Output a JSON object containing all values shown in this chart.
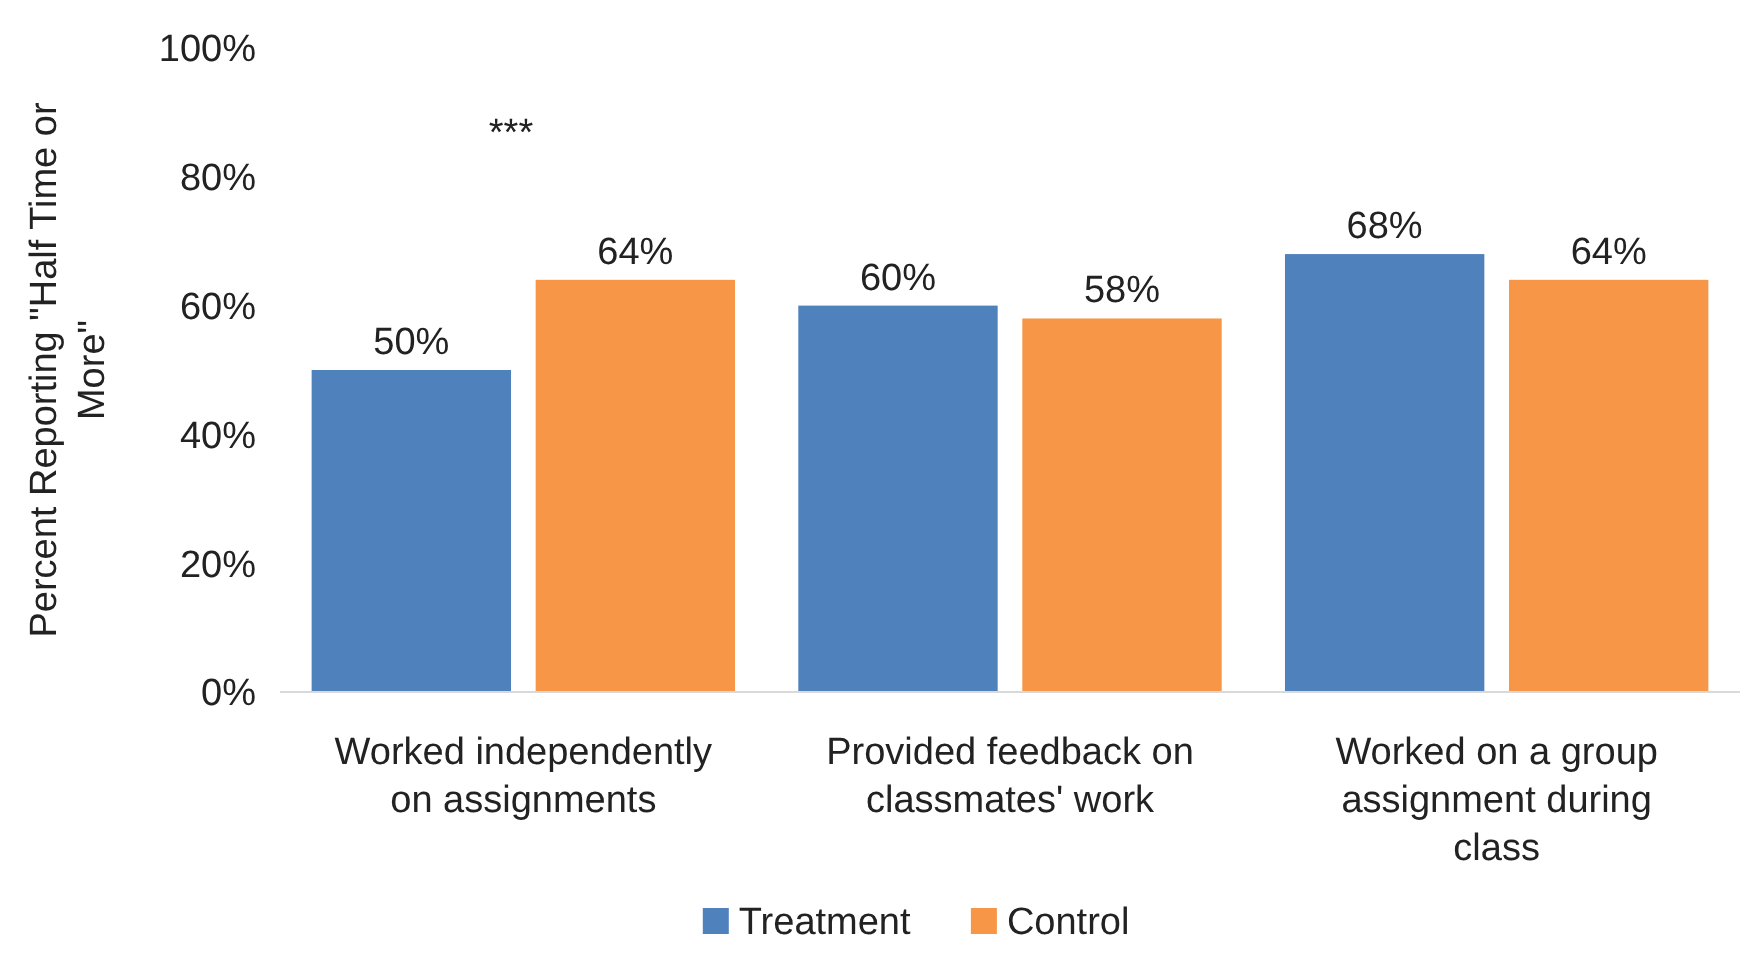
{
  "chart_data": {
    "type": "bar",
    "ylabel": "Percent Reporting \"Half Time or More\"",
    "categories": [
      "Worked independently on assignments",
      "Provided feedback on classmates' work",
      "Worked on a group assignment during class"
    ],
    "series": [
      {
        "name": "Treatment",
        "color": "#4f81bd",
        "values": [
          50,
          60,
          68
        ],
        "value_labels": [
          "50%",
          "60%",
          "68%"
        ]
      },
      {
        "name": "Control",
        "color": "#f79646",
        "values": [
          64,
          58,
          64
        ],
        "value_labels": [
          "64%",
          "58%",
          "64%"
        ]
      }
    ],
    "ylim": [
      0,
      100
    ],
    "yticks": [
      {
        "value": 0,
        "label": "0%"
      },
      {
        "value": 20,
        "label": "20%"
      },
      {
        "value": 40,
        "label": "40%"
      },
      {
        "value": 60,
        "label": "60%"
      },
      {
        "value": 80,
        "label": "80%"
      },
      {
        "value": 100,
        "label": "100%"
      }
    ],
    "annotations": [
      "***"
    ],
    "grid": false,
    "legend": "bottom"
  }
}
